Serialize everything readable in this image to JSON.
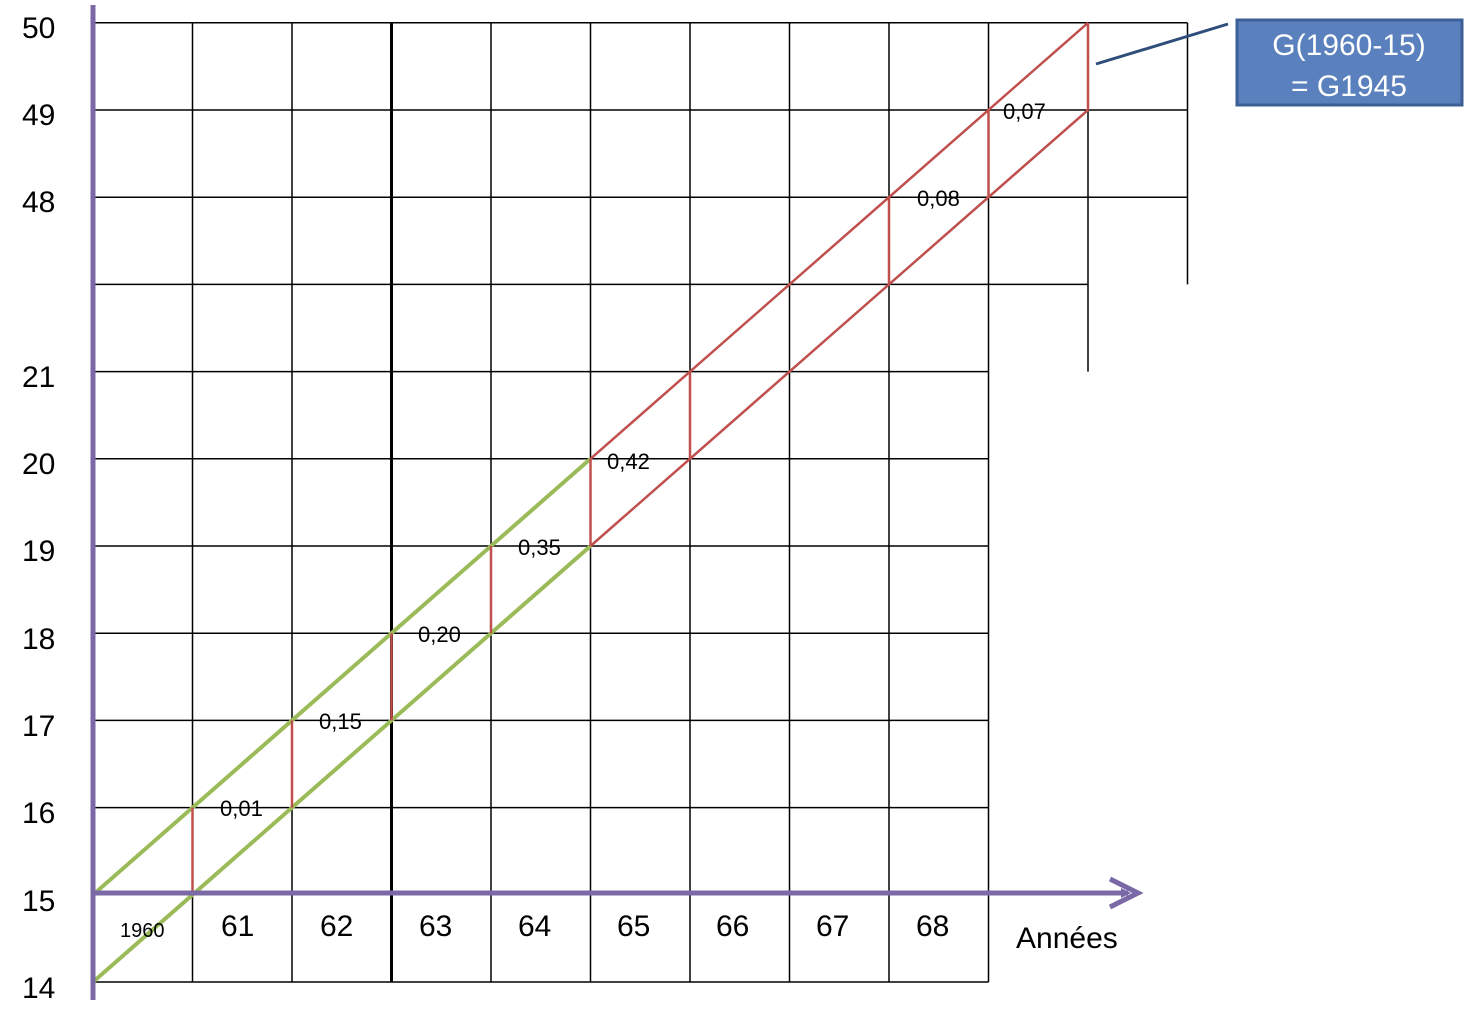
{
  "y_axis": {
    "labels": [
      "14",
      "15",
      "16",
      "17",
      "18",
      "19",
      "20",
      "21",
      "48",
      "49",
      "50"
    ]
  },
  "x_axis": {
    "labels": [
      "1960",
      "61",
      "62",
      "63",
      "64",
      "65",
      "66",
      "67",
      "68"
    ],
    "title": "Années"
  },
  "rates": [
    "0,01",
    "0,15",
    "0,20",
    "0,35",
    "0,42",
    "0,08",
    "0,07"
  ],
  "callout": {
    "line1": "G(1960-15)",
    "line2": "= G1945"
  },
  "colors": {
    "axis": "#7b68a6",
    "green": "#9bbb59",
    "red": "#c0504d",
    "blue": "#4f81bd",
    "grid": "#000000",
    "callout_fill": "#5a80bd",
    "callout_border": "#3c5f95",
    "leader": "#2e4d7a"
  }
}
